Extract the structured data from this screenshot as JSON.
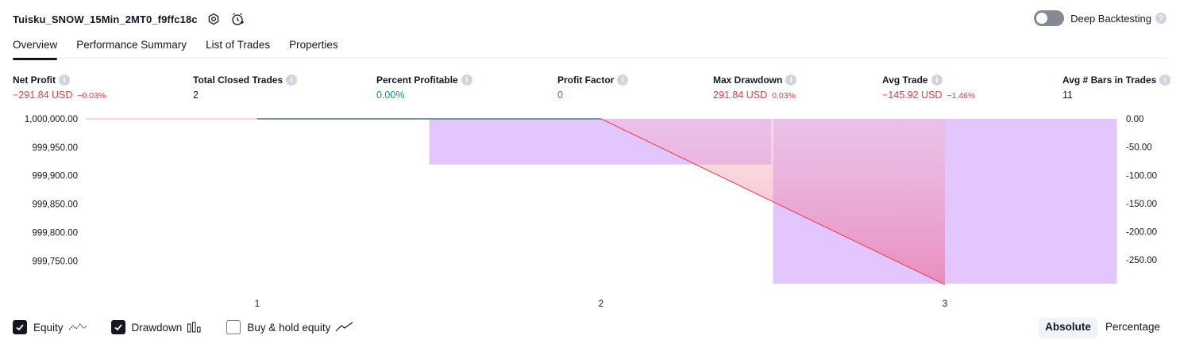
{
  "strategy": {
    "title": "Tuisku_SNOW_15Min_2MT0_f9ffc18c"
  },
  "deep_backtesting": {
    "label": "Deep Backtesting",
    "enabled": false
  },
  "tabs": [
    {
      "label": "Overview",
      "active": true
    },
    {
      "label": "Performance Summary"
    },
    {
      "label": "List of Trades"
    },
    {
      "label": "Properties"
    }
  ],
  "metrics": {
    "net_profit": {
      "label": "Net Profit",
      "value": "−291.84 USD",
      "pct": "−0.03%"
    },
    "total_closed_trades": {
      "label": "Total Closed Trades",
      "value": "2"
    },
    "percent_profitable": {
      "label": "Percent Profitable",
      "value": "0.00%"
    },
    "profit_factor": {
      "label": "Profit Factor",
      "value": "0"
    },
    "max_drawdown": {
      "label": "Max Drawdown",
      "value": "291.84 USD",
      "pct": "0.03%"
    },
    "avg_trade": {
      "label": "Avg Trade",
      "value": "−145.92 USD",
      "pct": "−1.46%"
    },
    "avg_bars": {
      "label": "Avg # Bars in Trades",
      "value": "11"
    }
  },
  "chart_data": {
    "type": "area",
    "x": [
      1,
      2,
      3
    ],
    "x_ticks": [
      "1",
      "2",
      "3"
    ],
    "left_axis": {
      "ticks": [
        "1,000,000.00",
        "999,950.00",
        "999,900.00",
        "999,850.00",
        "999,800.00",
        "999,750.00"
      ],
      "range": [
        999710,
        1000000
      ]
    },
    "right_axis": {
      "ticks": [
        "0.00",
        "-50.00",
        "-100.00",
        "-150.00",
        "-200.00",
        "-250.00"
      ],
      "range": [
        -291.84,
        0
      ]
    },
    "series": [
      {
        "name": "Equity",
        "x": [
          1,
          2,
          3
        ],
        "values": [
          1000000,
          1000000,
          999708.16
        ],
        "color": "#f23645"
      },
      {
        "name": "Drawdown",
        "bars": [
          {
            "x_from": 1.5,
            "x_to": 2.5,
            "value": -81
          },
          {
            "x_from": 2.5,
            "x_to": 3.5,
            "value": -291.84
          }
        ],
        "color": "#e1c3fd"
      },
      {
        "name": "Buy & hold equity",
        "x": [
          1,
          2
        ],
        "values": [
          1000000,
          1000000
        ],
        "color": "#78909c"
      }
    ]
  },
  "legend": {
    "equity": {
      "label": "Equity",
      "checked": true
    },
    "drawdown": {
      "label": "Drawdown",
      "checked": true
    },
    "buy_hold": {
      "label": "Buy & hold equity",
      "checked": false
    }
  },
  "mode": {
    "absolute": "Absolute",
    "percentage": "Percentage",
    "selected": "Absolute"
  }
}
